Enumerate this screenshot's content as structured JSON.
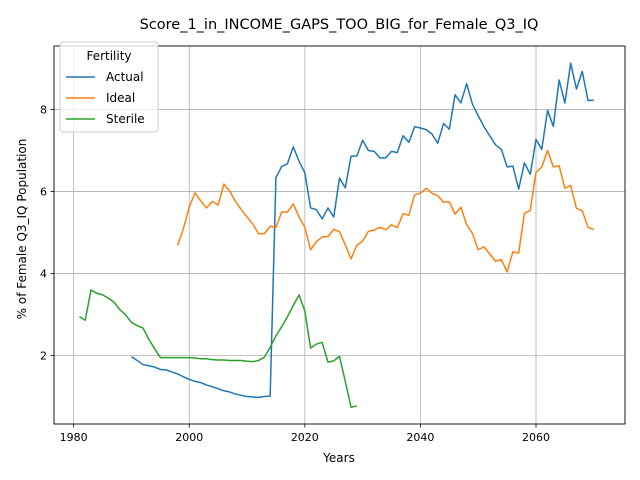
{
  "chart_data": {
    "type": "line",
    "title": "Score_1_in_INCOME_GAPS_TOO_BIG_for_Female_Q3_IQ",
    "xlabel": "Years",
    "ylabel": "% of Female Q3_IQ Population",
    "xlim": [
      1976.6,
      2075.4
    ],
    "ylim": [
      0.33,
      9.55
    ],
    "xticks": [
      1980,
      2000,
      2020,
      2040,
      2060
    ],
    "yticks": [
      2,
      4,
      6,
      8
    ],
    "grid": true,
    "legend": {
      "title": "Fertility",
      "position": "top-left"
    },
    "series": [
      {
        "name": "Actual",
        "color": "#1f77b4",
        "points": [
          [
            1990,
            1.97
          ],
          [
            1991,
            1.88
          ],
          [
            1992,
            1.78
          ],
          [
            1993,
            1.75
          ],
          [
            1994,
            1.72
          ],
          [
            1995,
            1.66
          ],
          [
            1996,
            1.65
          ],
          [
            1997,
            1.6
          ],
          [
            1998,
            1.55
          ],
          [
            1999,
            1.48
          ],
          [
            2000,
            1.42
          ],
          [
            2001,
            1.37
          ],
          [
            2002,
            1.34
          ],
          [
            2003,
            1.28
          ],
          [
            2004,
            1.24
          ],
          [
            2005,
            1.19
          ],
          [
            2006,
            1.14
          ],
          [
            2007,
            1.11
          ],
          [
            2008,
            1.06
          ],
          [
            2009,
            1.03
          ],
          [
            2010,
            1.0
          ],
          [
            2011,
            0.99
          ],
          [
            2012,
            0.98
          ],
          [
            2013,
            1.0
          ],
          [
            2014,
            1.01
          ],
          [
            2015,
            6.34
          ],
          [
            2016,
            6.61
          ],
          [
            2017,
            6.68
          ],
          [
            2018,
            7.09
          ],
          [
            2019,
            6.74
          ],
          [
            2020,
            6.46
          ],
          [
            2021,
            5.6
          ],
          [
            2022,
            5.56
          ],
          [
            2023,
            5.33
          ],
          [
            2024,
            5.6
          ],
          [
            2025,
            5.38
          ],
          [
            2026,
            6.33
          ],
          [
            2027,
            6.09
          ],
          [
            2028,
            6.86
          ],
          [
            2029,
            6.87
          ],
          [
            2030,
            7.25
          ],
          [
            2031,
            7.0
          ],
          [
            2032,
            6.98
          ],
          [
            2033,
            6.82
          ],
          [
            2034,
            6.82
          ],
          [
            2035,
            6.98
          ],
          [
            2036,
            6.95
          ],
          [
            2037,
            7.36
          ],
          [
            2038,
            7.2
          ],
          [
            2039,
            7.58
          ],
          [
            2040,
            7.55
          ],
          [
            2041,
            7.51
          ],
          [
            2042,
            7.4
          ],
          [
            2043,
            7.18
          ],
          [
            2044,
            7.66
          ],
          [
            2045,
            7.52
          ],
          [
            2046,
            8.36
          ],
          [
            2047,
            8.16
          ],
          [
            2048,
            8.63
          ],
          [
            2049,
            8.13
          ],
          [
            2050,
            7.85
          ],
          [
            2051,
            7.58
          ],
          [
            2052,
            7.36
          ],
          [
            2053,
            7.14
          ],
          [
            2054,
            7.03
          ],
          [
            2055,
            6.6
          ],
          [
            2056,
            6.62
          ],
          [
            2057,
            6.06
          ],
          [
            2058,
            6.7
          ],
          [
            2059,
            6.42
          ],
          [
            2060,
            7.27
          ],
          [
            2061,
            7.03
          ],
          [
            2062,
            7.98
          ],
          [
            2063,
            7.59
          ],
          [
            2064,
            8.72
          ],
          [
            2065,
            8.16
          ],
          [
            2066,
            9.13
          ],
          [
            2067,
            8.5
          ],
          [
            2068,
            8.93
          ],
          [
            2069,
            8.22
          ],
          [
            2070,
            8.23
          ]
        ]
      },
      {
        "name": "Ideal",
        "color": "#ff7f0e",
        "points": [
          [
            1998,
            4.69
          ],
          [
            1999,
            5.1
          ],
          [
            2000,
            5.62
          ],
          [
            2001,
            5.97
          ],
          [
            2002,
            5.77
          ],
          [
            2003,
            5.6
          ],
          [
            2004,
            5.76
          ],
          [
            2005,
            5.67
          ],
          [
            2006,
            6.18
          ],
          [
            2007,
            6.01
          ],
          [
            2008,
            5.76
          ],
          [
            2009,
            5.56
          ],
          [
            2010,
            5.38
          ],
          [
            2011,
            5.21
          ],
          [
            2012,
            4.97
          ],
          [
            2013,
            4.97
          ],
          [
            2014,
            5.15
          ],
          [
            2015,
            5.13
          ],
          [
            2016,
            5.5
          ],
          [
            2017,
            5.5
          ],
          [
            2018,
            5.7
          ],
          [
            2019,
            5.38
          ],
          [
            2020,
            5.13
          ],
          [
            2021,
            4.58
          ],
          [
            2022,
            4.78
          ],
          [
            2023,
            4.89
          ],
          [
            2024,
            4.9
          ],
          [
            2025,
            5.08
          ],
          [
            2026,
            5.02
          ],
          [
            2027,
            4.7
          ],
          [
            2028,
            4.36
          ],
          [
            2029,
            4.69
          ],
          [
            2030,
            4.79
          ],
          [
            2031,
            5.03
          ],
          [
            2032,
            5.06
          ],
          [
            2033,
            5.13
          ],
          [
            2034,
            5.07
          ],
          [
            2035,
            5.19
          ],
          [
            2036,
            5.12
          ],
          [
            2037,
            5.46
          ],
          [
            2038,
            5.42
          ],
          [
            2039,
            5.92
          ],
          [
            2040,
            5.96
          ],
          [
            2041,
            6.08
          ],
          [
            2042,
            5.96
          ],
          [
            2043,
            5.9
          ],
          [
            2044,
            5.74
          ],
          [
            2045,
            5.75
          ],
          [
            2046,
            5.45
          ],
          [
            2047,
            5.62
          ],
          [
            2048,
            5.19
          ],
          [
            2049,
            4.98
          ],
          [
            2050,
            4.58
          ],
          [
            2051,
            4.65
          ],
          [
            2052,
            4.48
          ],
          [
            2053,
            4.3
          ],
          [
            2054,
            4.34
          ],
          [
            2055,
            4.04
          ],
          [
            2056,
            4.53
          ],
          [
            2057,
            4.5
          ],
          [
            2058,
            5.47
          ],
          [
            2059,
            5.54
          ],
          [
            2060,
            6.47
          ],
          [
            2061,
            6.6
          ],
          [
            2062,
            7.0
          ],
          [
            2063,
            6.6
          ],
          [
            2064,
            6.63
          ],
          [
            2065,
            6.08
          ],
          [
            2066,
            6.15
          ],
          [
            2067,
            5.59
          ],
          [
            2068,
            5.53
          ],
          [
            2069,
            5.13
          ],
          [
            2070,
            5.07
          ]
        ]
      },
      {
        "name": "Sterile",
        "color": "#2ca02c",
        "points": [
          [
            1981,
            2.95
          ],
          [
            1982,
            2.86
          ],
          [
            1983,
            3.6
          ],
          [
            1984,
            3.52
          ],
          [
            1985,
            3.48
          ],
          [
            1986,
            3.4
          ],
          [
            1987,
            3.3
          ],
          [
            1988,
            3.12
          ],
          [
            1989,
            2.99
          ],
          [
            1990,
            2.81
          ],
          [
            1991,
            2.73
          ],
          [
            1992,
            2.67
          ],
          [
            1993,
            2.4
          ],
          [
            1994,
            2.17
          ],
          [
            1995,
            1.95
          ],
          [
            1996,
            1.95
          ],
          [
            1997,
            1.95
          ],
          [
            1998,
            1.95
          ],
          [
            1999,
            1.95
          ],
          [
            2000,
            1.95
          ],
          [
            2001,
            1.94
          ],
          [
            2002,
            1.92
          ],
          [
            2003,
            1.92
          ],
          [
            2004,
            1.9
          ],
          [
            2005,
            1.89
          ],
          [
            2006,
            1.89
          ],
          [
            2007,
            1.88
          ],
          [
            2008,
            1.88
          ],
          [
            2009,
            1.88
          ],
          [
            2010,
            1.86
          ],
          [
            2011,
            1.85
          ],
          [
            2012,
            1.88
          ],
          [
            2013,
            1.96
          ],
          [
            2014,
            2.2
          ],
          [
            2015,
            2.48
          ],
          [
            2016,
            2.7
          ],
          [
            2017,
            2.95
          ],
          [
            2018,
            3.22
          ],
          [
            2019,
            3.48
          ],
          [
            2020,
            3.09
          ],
          [
            2021,
            2.18
          ],
          [
            2022,
            2.28
          ],
          [
            2023,
            2.32
          ],
          [
            2024,
            1.84
          ],
          [
            2025,
            1.87
          ],
          [
            2026,
            1.98
          ],
          [
            2027,
            1.37
          ],
          [
            2028,
            0.74
          ],
          [
            2029,
            0.77
          ]
        ]
      }
    ]
  }
}
